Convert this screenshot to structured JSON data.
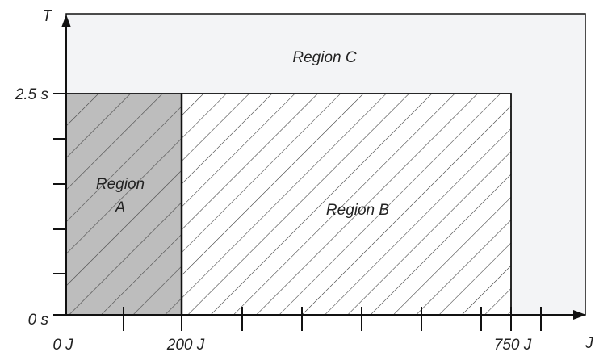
{
  "axes": {
    "y_axis_label": "T",
    "x_axis_label": "J",
    "y_ticks": [
      "2.5 s",
      "0 s"
    ],
    "x_ticks": [
      "0 J",
      "200 J",
      "750 J"
    ]
  },
  "regions": {
    "a_line1": "Region",
    "a_line2": "A",
    "b": "Region B",
    "c": "Region C"
  },
  "colors": {
    "region_a_fill": "#bdbdbd",
    "region_c_fill": "#f3f4f6",
    "line": "#111111",
    "hatch": "#333333"
  }
}
